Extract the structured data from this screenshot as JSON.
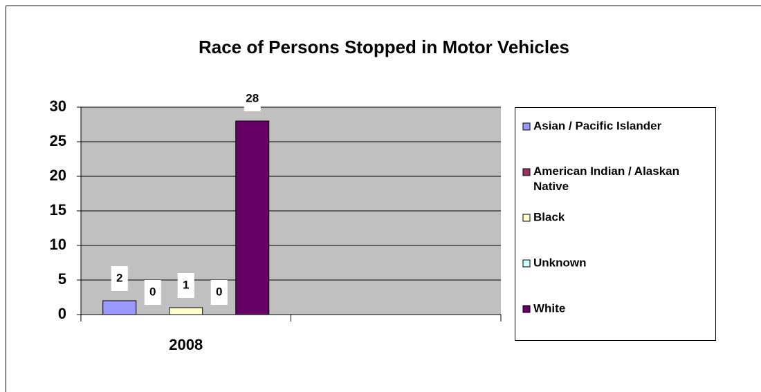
{
  "chart_data": {
    "type": "bar",
    "title": "Race of Persons Stopped in Motor Vehicles",
    "categories": [
      "2008",
      null
    ],
    "series": [
      {
        "name": "Asian / Pacific Islander",
        "color": "#9999ff",
        "values": [
          2,
          null
        ]
      },
      {
        "name": "American Indian / Alaskan Native",
        "color": "#993366",
        "values": [
          0,
          null
        ]
      },
      {
        "name": "Black",
        "color": "#ffffcc",
        "values": [
          1,
          null
        ]
      },
      {
        "name": "Unknown",
        "color": "#ccffff",
        "values": [
          0,
          null
        ]
      },
      {
        "name": "White",
        "color": "#660066",
        "values": [
          28,
          null
        ]
      }
    ],
    "ylim": [
      0,
      30
    ],
    "yticks": [
      0,
      5,
      10,
      15,
      20,
      25,
      30
    ],
    "grid": true,
    "data_labels": true,
    "legend": "right"
  }
}
